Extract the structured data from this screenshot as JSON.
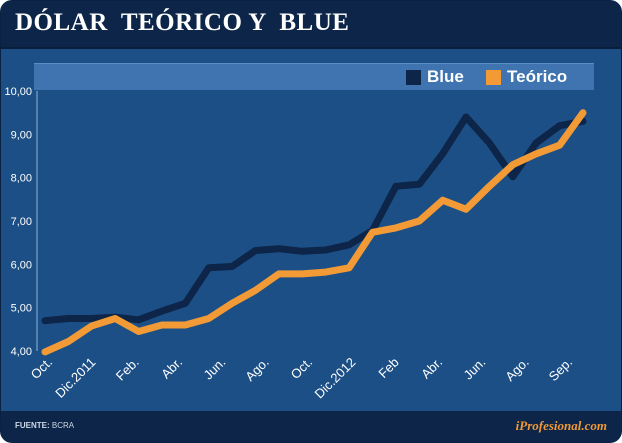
{
  "header": {
    "title": "DÓLAR  TEÓRICO Y  BLUE"
  },
  "footer": {
    "source_label": "FUENTE:",
    "source_value": "BCRA",
    "brand": "iProfesional.com"
  },
  "colors": {
    "blue": "#0c2548",
    "teorico": "#f29a36",
    "background": "#1c4f86"
  },
  "chart_data": {
    "type": "line",
    "title": "DÓLAR  TEÓRICO Y  BLUE",
    "legend_position": "top-right",
    "ylim": [
      4.0,
      10.0
    ],
    "yticks": [
      "4,00",
      "5,00",
      "6,00",
      "7,00",
      "8,00",
      "9,00",
      "10,00"
    ],
    "x_labels": [
      "Oct.",
      "Dic.2011",
      "Feb.",
      "Abr.",
      "Jun.",
      "Ago.",
      "Oct.",
      "Dic.2012",
      "Feb",
      "Abr.",
      "Jun.",
      "Ago.",
      "Sep."
    ],
    "series": [
      {
        "name": "Blue",
        "color": "#0c2548",
        "values": [
          4.7,
          4.75,
          4.75,
          4.78,
          4.72,
          4.92,
          5.1,
          5.92,
          5.95,
          6.32,
          6.36,
          6.3,
          6.33,
          6.45,
          6.78,
          7.8,
          7.85,
          8.55,
          9.4,
          8.8,
          8.02,
          8.8,
          9.2,
          9.3
        ]
      },
      {
        "name": "Teórico",
        "color": "#f29a36",
        "values": [
          3.98,
          4.22,
          4.58,
          4.75,
          4.45,
          4.6,
          4.6,
          4.75,
          5.1,
          5.4,
          5.78,
          5.78,
          5.82,
          5.92,
          6.74,
          6.84,
          7.0,
          7.48,
          7.27,
          7.8,
          8.3,
          8.55,
          8.75,
          9.5
        ]
      }
    ]
  }
}
